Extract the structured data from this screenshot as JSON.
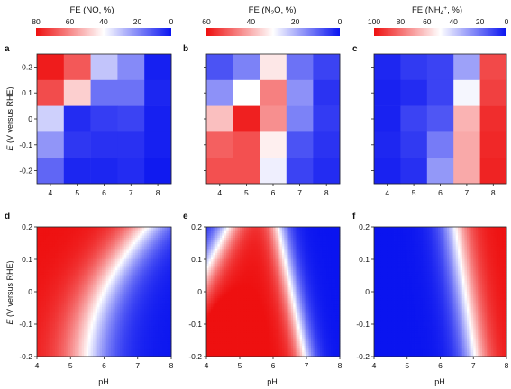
{
  "figure": {
    "bg": "#ffffff",
    "colors": {
      "red": "#ee1010",
      "white": "#ffffff",
      "blue": "#0a14f0"
    }
  },
  "chart_data": [
    {
      "panel": "a",
      "type": "heatmap",
      "colorbar": {
        "label_main": "FE (NO, %)",
        "ticks": [
          "80",
          "60",
          "40",
          "20",
          "0"
        ],
        "range": [
          80,
          0
        ]
      },
      "x_categories": [
        "4",
        "5",
        "6",
        "7",
        "8"
      ],
      "y_categories": [
        "0.2",
        "0.1",
        "0",
        "-0.1",
        "-0.2"
      ],
      "ylabel_main": "E",
      "ylabel_rest": " (V versus RHE)",
      "values": [
        [
          78,
          68,
          30,
          20,
          2
        ],
        [
          70,
          48,
          16,
          16,
          3
        ],
        [
          32,
          4,
          7,
          8,
          2
        ],
        [
          22,
          6,
          5,
          5,
          2
        ],
        [
          14,
          3,
          3,
          4,
          1
        ]
      ]
    },
    {
      "panel": "b",
      "type": "heatmap",
      "colorbar": {
        "label_main": "FE (N",
        "label_sub": "2",
        "label_end": "O, %)",
        "ticks": [
          "60",
          "40",
          "20",
          "0"
        ],
        "range": [
          60,
          0
        ]
      },
      "x_categories": [
        "4",
        "5",
        "6",
        "7",
        "8"
      ],
      "y_categories": [
        "0.2",
        "0.1",
        "0",
        "-0.1",
        "-0.2"
      ],
      "values": [
        [
          8,
          14,
          33,
          12,
          6
        ],
        [
          16,
          30,
          46,
          16,
          4
        ],
        [
          38,
          58,
          44,
          14,
          5
        ],
        [
          50,
          52,
          32,
          8,
          4
        ],
        [
          52,
          52,
          28,
          6,
          3
        ]
      ]
    },
    {
      "panel": "c",
      "type": "heatmap",
      "colorbar": {
        "label_main": "FE (NH",
        "label_sub": "4",
        "label_sup": "+",
        "label_end": ", %)",
        "ticks": [
          "100",
          "80",
          "60",
          "40",
          "20",
          "0"
        ],
        "range": [
          100,
          0
        ]
      },
      "x_categories": [
        "4",
        "5",
        "6",
        "7",
        "8"
      ],
      "y_categories": [
        "0.2",
        "0.1",
        "0",
        "-0.1",
        "-0.2"
      ],
      "values": [
        [
          4,
          8,
          10,
          30,
          88
        ],
        [
          3,
          5,
          10,
          48,
          90
        ],
        [
          3,
          10,
          14,
          66,
          94
        ],
        [
          4,
          8,
          22,
          68,
          95
        ],
        [
          3,
          6,
          28,
          68,
          96
        ]
      ]
    },
    {
      "panel": "d",
      "type": "contour",
      "scale_max": 80,
      "xlim": [
        4,
        8
      ],
      "ylim": [
        -0.2,
        0.2
      ],
      "x_ticks": [
        "4",
        "5",
        "6",
        "7",
        "8"
      ],
      "y_ticks": [
        "0.2",
        "0.1",
        "0",
        "-0.1",
        "-0.2"
      ],
      "xlabel": "pH",
      "ylabel_main": "E",
      "ylabel_rest": " (V versus RHE)",
      "model": "no"
    },
    {
      "panel": "e",
      "type": "contour",
      "scale_max": 60,
      "xlim": [
        4,
        8
      ],
      "ylim": [
        -0.2,
        0.2
      ],
      "x_ticks": [
        "4",
        "5",
        "6",
        "7",
        "8"
      ],
      "y_ticks": [
        "0.2",
        "0.1",
        "0",
        "-0.1",
        "-0.2"
      ],
      "xlabel": "pH",
      "model": "n2o"
    },
    {
      "panel": "f",
      "type": "contour",
      "scale_max": 100,
      "xlim": [
        4,
        8
      ],
      "ylim": [
        -0.2,
        0.2
      ],
      "x_ticks": [
        "4",
        "5",
        "6",
        "7",
        "8"
      ],
      "y_ticks": [
        "0.2",
        "0.1",
        "0",
        "-0.1",
        "-0.2"
      ],
      "xlabel": "pH",
      "model": "nh4"
    }
  ]
}
